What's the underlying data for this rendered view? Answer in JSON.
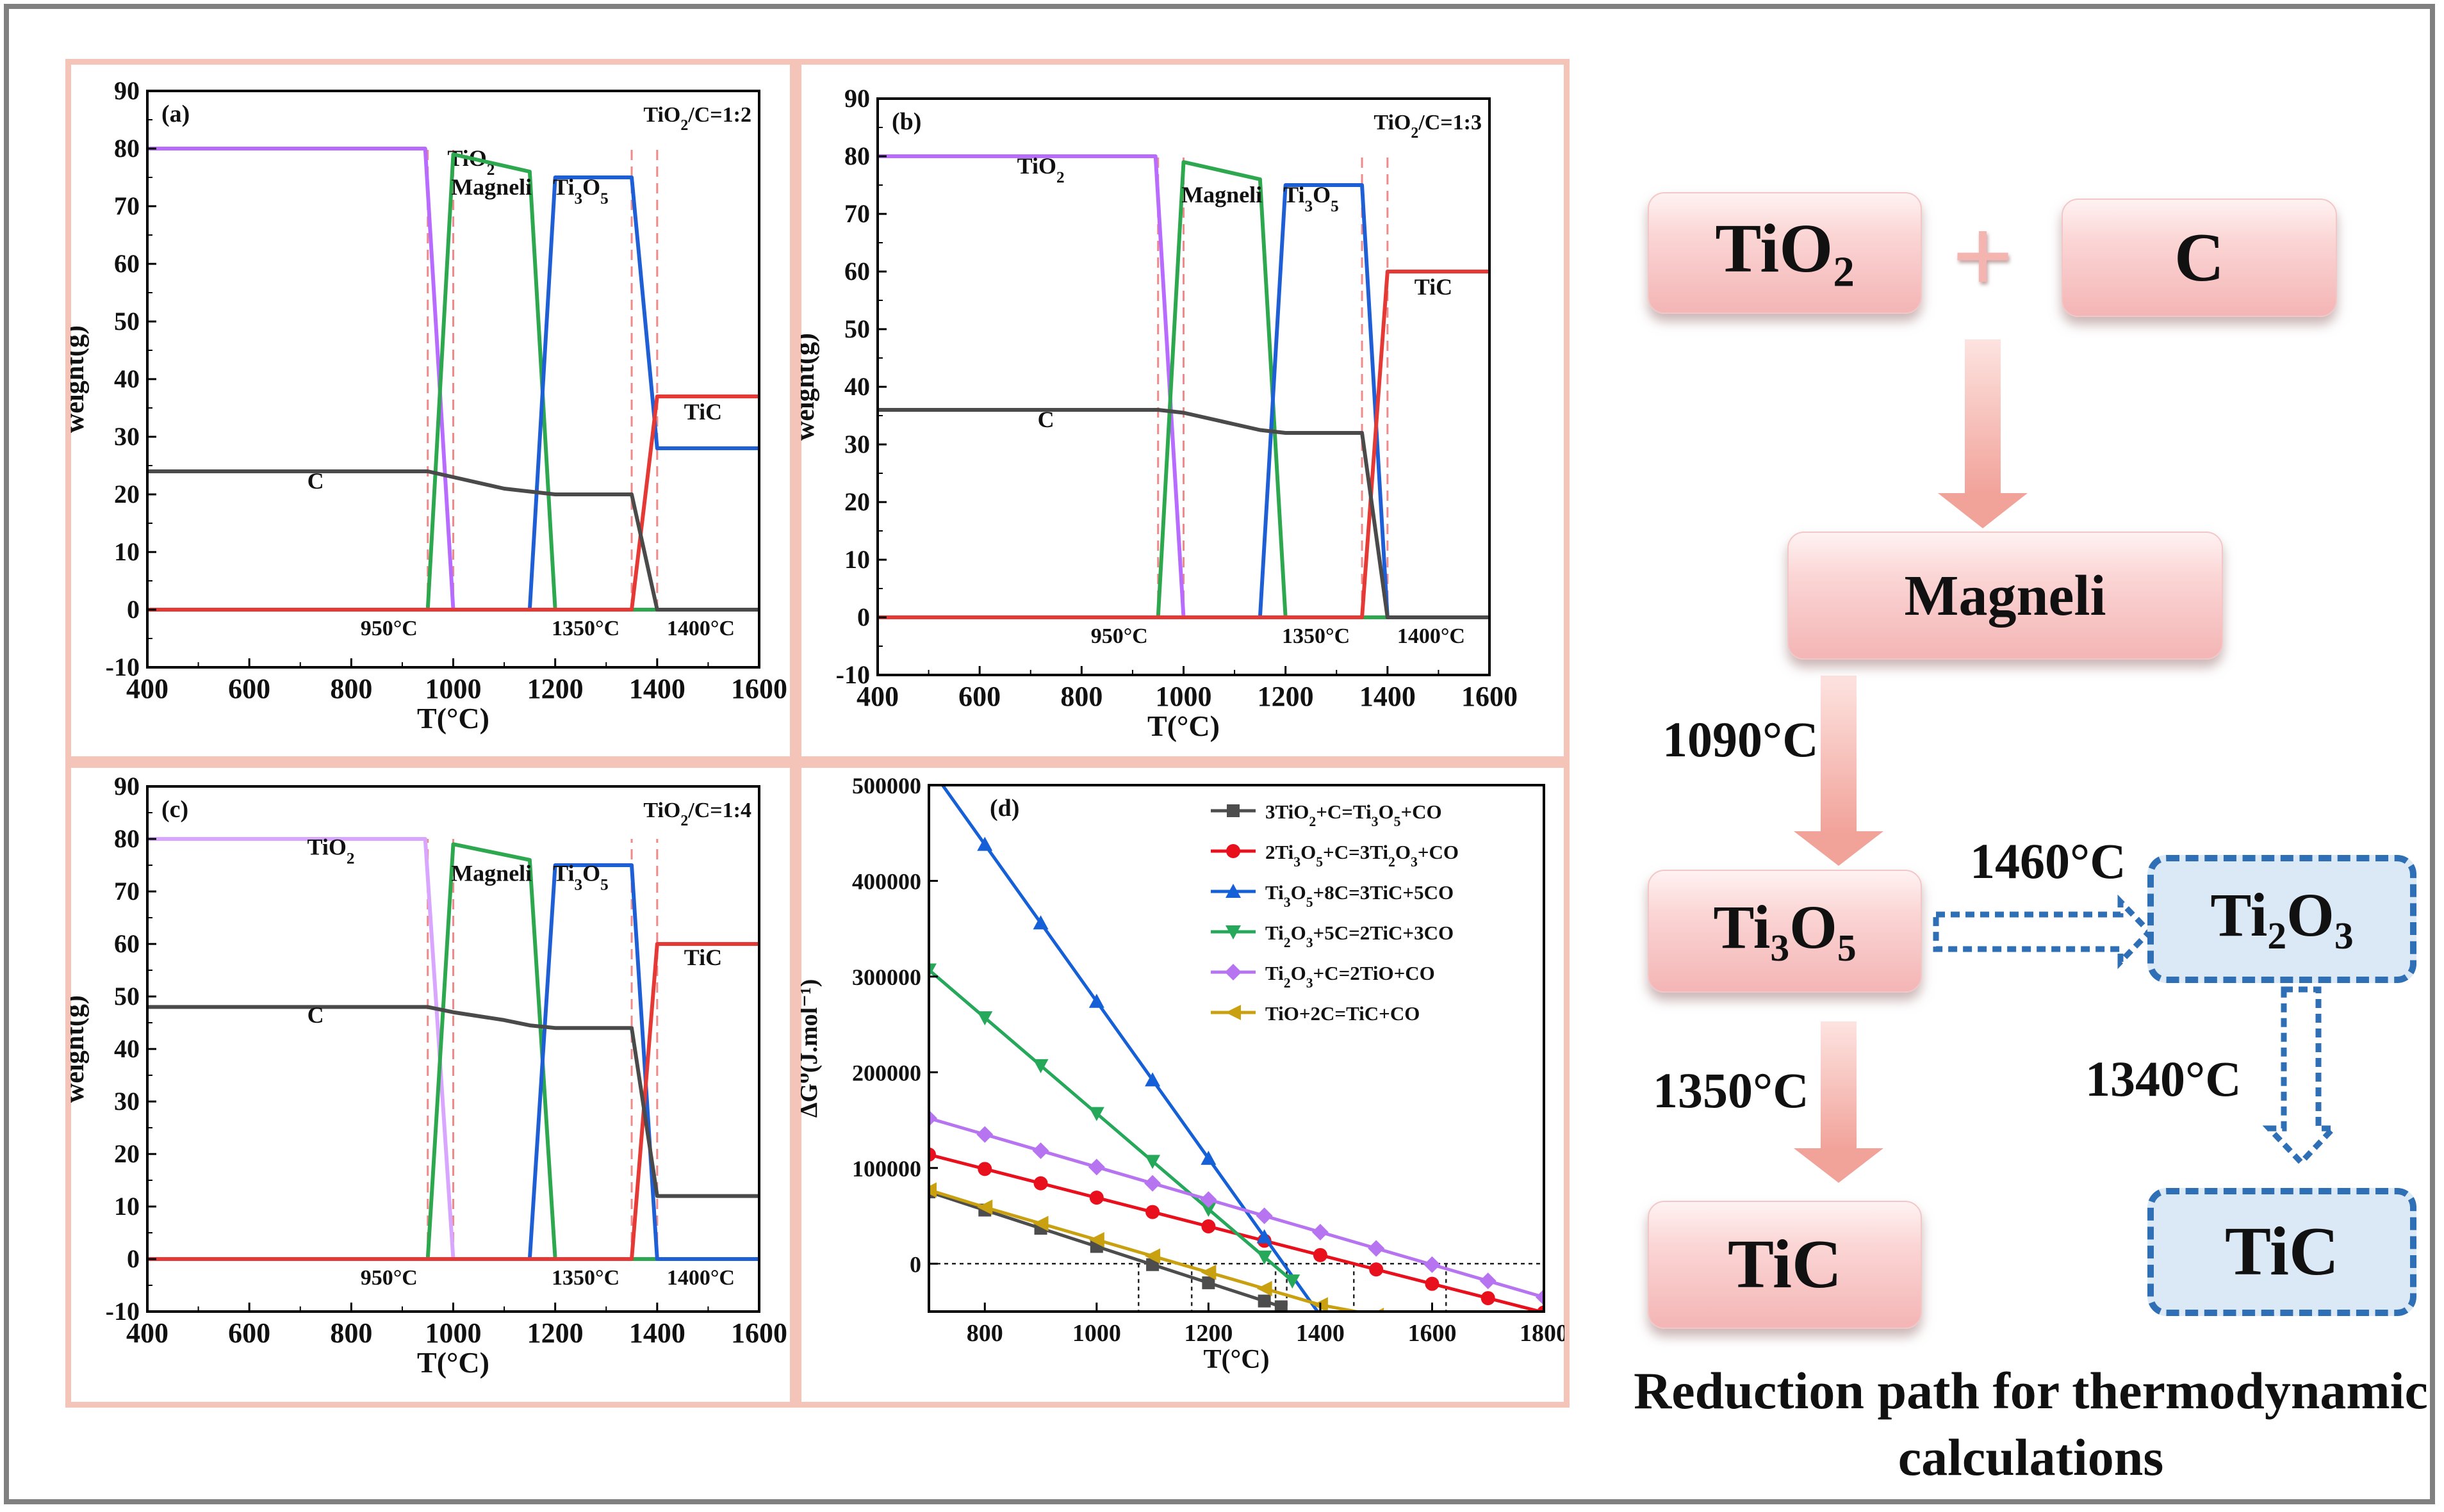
{
  "chart_data": [
    {
      "panel": "(a)",
      "type": "line",
      "annotation": "TiO2/C=1:2",
      "xlabel": "T(°C)",
      "ylabel": "weight(g)",
      "xlim": [
        400,
        1600
      ],
      "ylim": [
        -10,
        90
      ],
      "xticks": [
        400,
        600,
        800,
        1000,
        1200,
        1400,
        1600
      ],
      "yticks": [
        -10,
        0,
        10,
        20,
        30,
        40,
        50,
        60,
        70,
        80,
        90
      ],
      "series": [
        {
          "label": "TiO2",
          "color": "#b86bff",
          "points": [
            [
              400,
              80
            ],
            [
              945,
              80
            ],
            [
              1000,
              0
            ],
            [
              1600,
              0
            ]
          ],
          "label_at": [
            1035,
            77
          ]
        },
        {
          "label": "Magneli",
          "color": "#2ea84f",
          "points": [
            [
              400,
              0
            ],
            [
              950,
              0
            ],
            [
              1000,
              79
            ],
            [
              1150,
              76
            ],
            [
              1200,
              0
            ],
            [
              1600,
              0
            ]
          ],
          "label_at": [
            1075,
            72
          ]
        },
        {
          "label": "Ti3O5",
          "color": "#1f5fd6",
          "points": [
            [
              400,
              0
            ],
            [
              1150,
              0
            ],
            [
              1200,
              75
            ],
            [
              1350,
              75
            ],
            [
              1400,
              28
            ],
            [
              1600,
              28
            ]
          ],
          "label_at": [
            1250,
            72
          ]
        },
        {
          "label": "TiC",
          "color": "#e53935",
          "points": [
            [
              400,
              0
            ],
            [
              1350,
              0
            ],
            [
              1400,
              37
            ],
            [
              1600,
              37
            ]
          ],
          "label_at": [
            1490,
            33
          ]
        },
        {
          "label": "C",
          "color": "#4a4a4a",
          "points": [
            [
              400,
              24
            ],
            [
              950,
              24
            ],
            [
              1000,
              23
            ],
            [
              1100,
              21
            ],
            [
              1150,
              20.5
            ],
            [
              1200,
              20
            ],
            [
              1350,
              20
            ],
            [
              1400,
              0
            ],
            [
              1600,
              0
            ]
          ],
          "label_at": [
            730,
            21
          ]
        }
      ],
      "vlines": [
        {
          "x": 950,
          "text": "950°C"
        },
        {
          "x": 1000,
          "text": ""
        },
        {
          "x": 1350,
          "text": "1350°C"
        },
        {
          "x": 1400,
          "text": "1400°C"
        }
      ]
    },
    {
      "panel": "(b)",
      "type": "line",
      "annotation": "TiO2/C=1:3",
      "xlabel": "T(°C)",
      "ylabel": "weight(g)",
      "xlim": [
        400,
        1600
      ],
      "ylim": [
        -10,
        90
      ],
      "xticks": [
        400,
        600,
        800,
        1000,
        1200,
        1400,
        1600
      ],
      "yticks": [
        -10,
        0,
        10,
        20,
        30,
        40,
        50,
        60,
        70,
        80,
        90
      ],
      "series": [
        {
          "label": "TiO2",
          "color": "#b86bff",
          "points": [
            [
              400,
              80
            ],
            [
              945,
              80
            ],
            [
              1000,
              0
            ],
            [
              1600,
              0
            ]
          ],
          "label_at": [
            720,
            77
          ]
        },
        {
          "label": "Magneli",
          "color": "#2ea84f",
          "points": [
            [
              400,
              0
            ],
            [
              950,
              0
            ],
            [
              1000,
              79
            ],
            [
              1150,
              76
            ],
            [
              1200,
              0
            ],
            [
              1600,
              0
            ]
          ],
          "label_at": [
            1075,
            72
          ]
        },
        {
          "label": "Ti3O5",
          "color": "#1f5fd6",
          "points": [
            [
              400,
              0
            ],
            [
              1150,
              0
            ],
            [
              1200,
              75
            ],
            [
              1350,
              75
            ],
            [
              1400,
              0
            ],
            [
              1600,
              0
            ]
          ],
          "label_at": [
            1250,
            72
          ]
        },
        {
          "label": "TiC",
          "color": "#e53935",
          "points": [
            [
              400,
              0
            ],
            [
              1350,
              0
            ],
            [
              1400,
              60
            ],
            [
              1600,
              60
            ]
          ],
          "label_at": [
            1490,
            56
          ]
        },
        {
          "label": "C",
          "color": "#4a4a4a",
          "points": [
            [
              400,
              36
            ],
            [
              950,
              36
            ],
            [
              1000,
              35.5
            ],
            [
              1100,
              33.5
            ],
            [
              1150,
              32.5
            ],
            [
              1200,
              32
            ],
            [
              1350,
              32
            ],
            [
              1400,
              0
            ],
            [
              1600,
              0
            ]
          ],
          "label_at": [
            730,
            33
          ]
        }
      ],
      "vlines": [
        {
          "x": 950,
          "text": "950°C"
        },
        {
          "x": 1000,
          "text": ""
        },
        {
          "x": 1350,
          "text": "1350°C"
        },
        {
          "x": 1400,
          "text": "1400°C"
        }
      ]
    },
    {
      "panel": "(c)",
      "type": "line",
      "annotation": "TiO2/C=1:4",
      "xlabel": "T(°C)",
      "ylabel": "weight(g)",
      "xlim": [
        400,
        1600
      ],
      "ylim": [
        -10,
        90
      ],
      "xticks": [
        400,
        600,
        800,
        1000,
        1200,
        1400,
        1600
      ],
      "yticks": [
        -10,
        0,
        10,
        20,
        30,
        40,
        50,
        60,
        70,
        80,
        90
      ],
      "series": [
        {
          "label": "TiO2",
          "color": "#d9a6ff",
          "points": [
            [
              400,
              80
            ],
            [
              945,
              80
            ],
            [
              1000,
              0
            ],
            [
              1600,
              0
            ]
          ],
          "label_at": [
            760,
            77
          ]
        },
        {
          "label": "Magneli",
          "color": "#2ea84f",
          "points": [
            [
              400,
              0
            ],
            [
              950,
              0
            ],
            [
              1000,
              79
            ],
            [
              1150,
              76
            ],
            [
              1200,
              0
            ],
            [
              1600,
              0
            ]
          ],
          "label_at": [
            1075,
            72
          ]
        },
        {
          "label": "Ti3O5",
          "color": "#1f5fd6",
          "points": [
            [
              400,
              0
            ],
            [
              1150,
              0
            ],
            [
              1200,
              75
            ],
            [
              1350,
              75
            ],
            [
              1400,
              0
            ],
            [
              1600,
              0
            ]
          ],
          "label_at": [
            1250,
            72
          ]
        },
        {
          "label": "TiC",
          "color": "#e53935",
          "points": [
            [
              400,
              0
            ],
            [
              1350,
              0
            ],
            [
              1400,
              60
            ],
            [
              1600,
              60
            ]
          ],
          "label_at": [
            1490,
            56
          ]
        },
        {
          "label": "C",
          "color": "#4a4a4a",
          "points": [
            [
              400,
              48
            ],
            [
              950,
              48
            ],
            [
              1000,
              47
            ],
            [
              1100,
              45.5
            ],
            [
              1150,
              44.5
            ],
            [
              1200,
              44
            ],
            [
              1350,
              44
            ],
            [
              1400,
              12
            ],
            [
              1600,
              12
            ]
          ],
          "label_at": [
            730,
            45
          ]
        }
      ],
      "vlines": [
        {
          "x": 950,
          "text": "950°C"
        },
        {
          "x": 1000,
          "text": ""
        },
        {
          "x": 1350,
          "text": "1350°C"
        },
        {
          "x": 1400,
          "text": "1400°C"
        }
      ]
    },
    {
      "panel": "(d)",
      "type": "line",
      "xlabel": "T(°C)",
      "ylabel": "ΔG⁰(J.mol⁻¹)",
      "xlim": [
        700,
        1800
      ],
      "ylim": [
        -50000,
        500000
      ],
      "xticks": [
        800,
        1000,
        1200,
        1400,
        1600,
        1800
      ],
      "yticks": [
        0,
        100000,
        200000,
        300000,
        400000,
        500000
      ],
      "legend_position": "top-right",
      "series": [
        {
          "label": "3TiO2+C=Ti3O5+CO",
          "color": "#4d4d4d",
          "marker": "square",
          "x": [
            700,
            800,
            900,
            1000,
            1100,
            1200,
            1300,
            1330
          ],
          "y": [
            75000,
            56000,
            37000,
            18000,
            -1000,
            -20000,
            -39000,
            -45000
          ]
        },
        {
          "label": "2Ti3O5+C=3Ti2O3+CO",
          "color": "#e8101c",
          "marker": "circle",
          "x": [
            700,
            800,
            900,
            1000,
            1100,
            1200,
            1300,
            1400,
            1500,
            1600,
            1700,
            1800
          ],
          "y": [
            114000,
            99000,
            84000,
            69000,
            54000,
            39000,
            24000,
            9000,
            -6000,
            -21000,
            -36000,
            -51000
          ]
        },
        {
          "label": "Ti3O5+8C=3TiC+5CO",
          "color": "#1560d6",
          "marker": "triangle-up",
          "x": [
            700,
            800,
            900,
            1000,
            1100,
            1200,
            1300,
            1400
          ],
          "y": [
            520000,
            438000,
            356000,
            274000,
            192000,
            110000,
            28000,
            -54000
          ]
        },
        {
          "label": "Ti2O3+5C=2TiC+3CO",
          "color": "#26a85a",
          "marker": "triangle-down",
          "x": [
            700,
            800,
            900,
            1000,
            1100,
            1200,
            1300,
            1350
          ],
          "y": [
            307000,
            257000,
            207000,
            157000,
            107000,
            57000,
            7000,
            -18000
          ]
        },
        {
          "label": "Ti2O3+C=2TiO+CO",
          "color": "#b774f0",
          "marker": "diamond",
          "x": [
            700,
            800,
            900,
            1000,
            1100,
            1200,
            1300,
            1400,
            1500,
            1600,
            1700,
            1800
          ],
          "y": [
            152000,
            135000,
            118000,
            101000,
            84000,
            67000,
            50000,
            33000,
            16000,
            -1000,
            -18000,
            -35000
          ]
        },
        {
          "label": "TiO+2C=TiC+CO",
          "color": "#c8a010",
          "marker": "triangle-left",
          "x": [
            700,
            800,
            900,
            1000,
            1100,
            1200,
            1300,
            1400,
            1500
          ],
          "y": [
            77000,
            59000,
            42000,
            25000,
            8000,
            -9000,
            -26000,
            -43000,
            -54000
          ]
        }
      ],
      "zero_crossings_x": [
        1075,
        1170,
        1320,
        1340,
        1460,
        1625
      ]
    }
  ],
  "flow": {
    "nodes": {
      "tio2": "TiO2",
      "plus": "+",
      "c": "C",
      "magneli": "Magneli",
      "ti3o5": "Ti3O5",
      "ti2o3": "Ti2O3",
      "tic_left": "TiC",
      "tic_right": "TiC"
    },
    "temps": {
      "t1090": "1090°C",
      "t1460": "1460°C",
      "t1350": "1350°C",
      "t1340": "1340°C"
    },
    "caption": "Reduction path for thermodynamic calculations",
    "colors": {
      "pink": "#f6b9b9",
      "blue_dash": "#2f6fb5",
      "arrow_pink": "#f2a8a0"
    }
  }
}
